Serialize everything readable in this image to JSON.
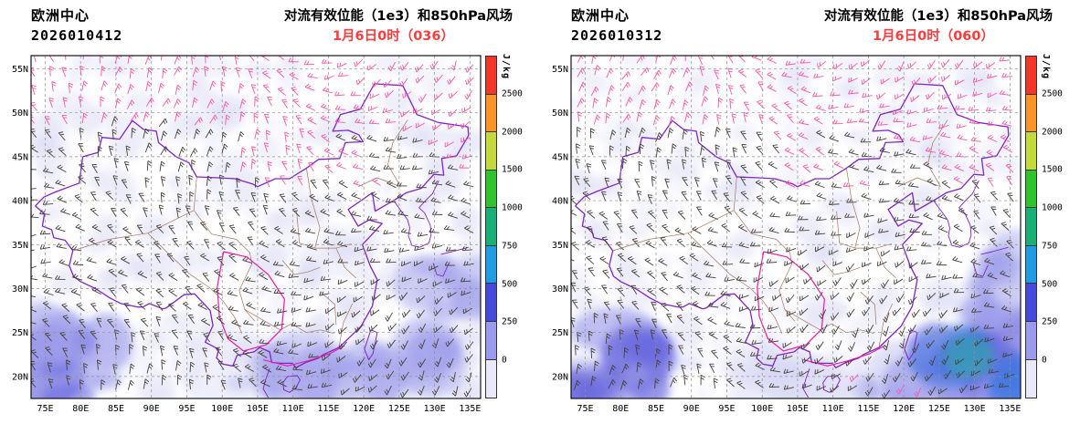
{
  "chart_data": {
    "type": "heatmap",
    "subtype": "weather-map: CAPE shading + 850hPa wind barbs over China",
    "projection": "lat-lon grid",
    "lon_range": [
      73,
      136.5
    ],
    "lat_range": [
      17.5,
      56.5
    ],
    "grid": "dashed",
    "lon_tick_values": [
      75,
      80,
      85,
      90,
      95,
      100,
      105,
      110,
      115,
      120,
      125,
      130,
      135
    ],
    "lon_tick_labels": [
      "75E",
      "80E",
      "85E",
      "90E",
      "95E",
      "100E",
      "105E",
      "110E",
      "115E",
      "120E",
      "125E",
      "130E",
      "135E"
    ],
    "lat_tick_values": [
      55,
      50,
      45,
      40,
      35,
      30,
      25,
      20
    ],
    "lat_tick_labels": [
      "55N",
      "50N",
      "45N",
      "40N",
      "35N",
      "30N",
      "25N",
      "20N"
    ],
    "colorbar": {
      "label": "J/kg",
      "tick_labels_top_to_bottom": [
        "2500",
        "2000",
        "1500",
        "1000",
        "750",
        "500",
        "250",
        "0"
      ],
      "colors_top_to_bottom": [
        "#f63428",
        "#fb9427",
        "#c3da3a",
        "#2ec42e",
        "#17b077",
        "#1f9ce4",
        "#4549df",
        "#9a9aee",
        "#e9e9fa"
      ]
    },
    "map_colors": {
      "national_border": "#8024c8",
      "province_border": "#a5795a",
      "highlight_border": "#ef18a8",
      "barb_dark": "#474038",
      "barb_pink": "#ff55a6"
    },
    "panels": [
      {
        "source": "欧洲中心",
        "init_time": "2026010412",
        "title": "对流有效位能（1e3）和850hPa风场",
        "valid_time": "1月6日0时（036）",
        "forecast_hour": 36,
        "wind_field": "850hPa wind barbs; dark barbs over most of the domain, pink barbs across the north and northeast",
        "cape_shading_regions": [
          {
            "area": "widespread weak lavender mottling",
            "lon": [
              73,
              136.5
            ],
            "lat": [
              17.5,
              56.5
            ],
            "peak_value": 200
          },
          {
            "area": "southwest corner",
            "lon": [
              73,
              84
            ],
            "lat": [
              17.5,
              25
            ],
            "peak_value": 600
          },
          {
            "area": "southern sea band",
            "lon": [
              100,
              126
            ],
            "lat": [
              17.5,
              21.5
            ],
            "peak_value": 350
          },
          {
            "area": "southeast ocean right edge",
            "lon": [
              128,
              136.5
            ],
            "lat": [
              20,
              33
            ],
            "peak_value": 450
          }
        ]
      },
      {
        "source": "欧洲中心",
        "init_time": "2026010312",
        "title": "对流有效位能（1e3）和850hPa风场",
        "valid_time": "1月6日0时（060）",
        "forecast_hour": 60,
        "wind_field": "850hPa wind barbs; dark barbs over most of the domain, pink barbs across the north",
        "cape_shading_regions": [
          {
            "area": "widespread weak lavender mottling",
            "lon": [
              73,
              136.5
            ],
            "lat": [
              17.5,
              56.5
            ],
            "peak_value": 200
          },
          {
            "area": "southwest corner",
            "lon": [
              73,
              85
            ],
            "lat": [
              17.5,
              26
            ],
            "peak_value": 650
          },
          {
            "area": "southern sea band",
            "lon": [
              100,
              122
            ],
            "lat": [
              17.5,
              21.5
            ],
            "peak_value": 350
          },
          {
            "area": "southeast ocean strong",
            "lon": [
              122,
              136.5
            ],
            "lat": [
              17.5,
              27
            ],
            "peak_value": 900
          },
          {
            "area": "right edge mid-latitude",
            "lon": [
              130,
              136.5
            ],
            "lat": [
              27,
              34
            ],
            "peak_value": 400
          }
        ]
      }
    ]
  }
}
